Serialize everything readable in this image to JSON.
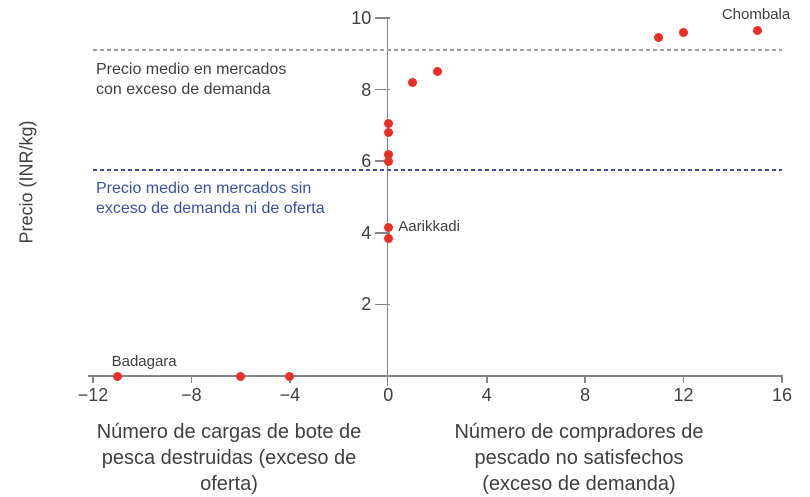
{
  "chart_data": {
    "type": "scatter",
    "title": "",
    "ylabel": "Precio (INR/kg)",
    "xlabel_left": "Número de cargas de bote de\npesca destruidas (exceso de\noferta)",
    "xlabel_right": "Número de compradores de\npescado no satisfechos\n(exceso de demanda)",
    "xlim": [
      -12,
      16
    ],
    "ylim": [
      0,
      10
    ],
    "x_ticks": [
      -12,
      -8,
      -4,
      0,
      4,
      8,
      12,
      16
    ],
    "x_tick_labels": [
      "−12",
      "−8",
      "−4",
      "0",
      "4",
      "8",
      "12",
      "16"
    ],
    "y_ticks": [
      2,
      4,
      6,
      8,
      10
    ],
    "y_tick_labels": [
      "2",
      "4",
      "6",
      "8",
      "10"
    ],
    "grid": "off",
    "point_color": "#ec2e25",
    "axis_color": "#868686",
    "points": [
      {
        "x": -11,
        "y": 0,
        "label": "Badagara",
        "label_pos": "above-right"
      },
      {
        "x": -6,
        "y": 0
      },
      {
        "x": -4,
        "y": 0
      },
      {
        "x": 0,
        "y": 7.05
      },
      {
        "x": 0,
        "y": 6.8
      },
      {
        "x": 0,
        "y": 6.2
      },
      {
        "x": 0,
        "y": 6.0
      },
      {
        "x": 0,
        "y": 4.15,
        "label": "Aarikkadi",
        "label_pos": "right"
      },
      {
        "x": 0,
        "y": 3.85
      },
      {
        "x": 1,
        "y": 8.2
      },
      {
        "x": 2,
        "y": 8.5
      },
      {
        "x": 11,
        "y": 9.45
      },
      {
        "x": 12,
        "y": 9.6
      },
      {
        "x": 15,
        "y": 9.65,
        "label": "Chombala",
        "label_pos": "above"
      }
    ],
    "reference_lines": [
      {
        "y": 9.1,
        "color": "#9b9b9b",
        "label": "Precio medio en mercados\ncon exceso de demanda",
        "label_color": "#3f3f3f"
      },
      {
        "y": 5.75,
        "color": "#3a4fa5",
        "label": "Precio medio en mercados sin\nexceso de demanda ni de oferta",
        "label_color": "#3a4fa5"
      }
    ]
  }
}
